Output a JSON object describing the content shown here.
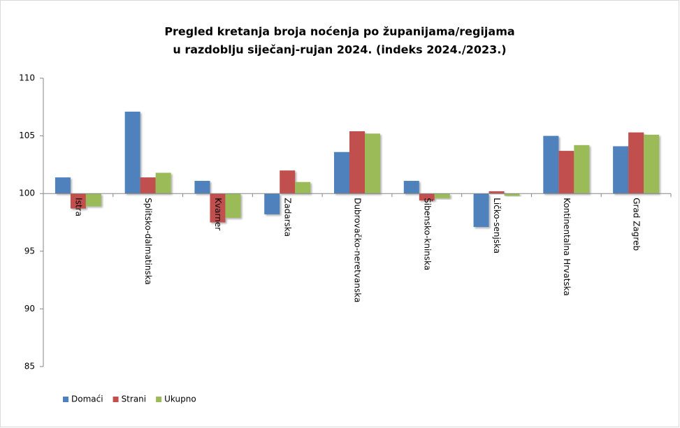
{
  "chart_data": {
    "type": "bar",
    "title": [
      "Pregled kretanja broja noćenja po županijama/regijama",
      "u razdoblju siječanj-rujan 2024. (indeks 2024./2023.)"
    ],
    "categories": [
      "Istra",
      "Splitsko-dalmatinska",
      "Kvarner",
      "Zadarska",
      "Dubrovačko-neretvanska",
      "Šibensko-kninska",
      "Ličko-senjska",
      "Kontinentalna Hrvatska",
      "Grad Zagreb"
    ],
    "series": [
      {
        "name": "Domaći",
        "color": "#4f81bd",
        "values": [
          101.4,
          107.1,
          101.1,
          98.2,
          103.6,
          101.1,
          97.1,
          105.0,
          104.1
        ]
      },
      {
        "name": "Strani",
        "color": "#c0504d",
        "values": [
          98.7,
          101.4,
          97.5,
          102.0,
          105.4,
          99.4,
          100.2,
          103.7,
          105.3
        ]
      },
      {
        "name": "Ukupno",
        "color": "#9bbb59",
        "values": [
          98.9,
          101.8,
          97.9,
          101.0,
          105.2,
          99.6,
          99.8,
          104.2,
          105.1
        ]
      }
    ],
    "ylim": [
      85,
      110
    ],
    "yticks": [
      85,
      90,
      95,
      100,
      105,
      110
    ],
    "x_axis_crosses": 100,
    "legend": "bottom-left"
  }
}
